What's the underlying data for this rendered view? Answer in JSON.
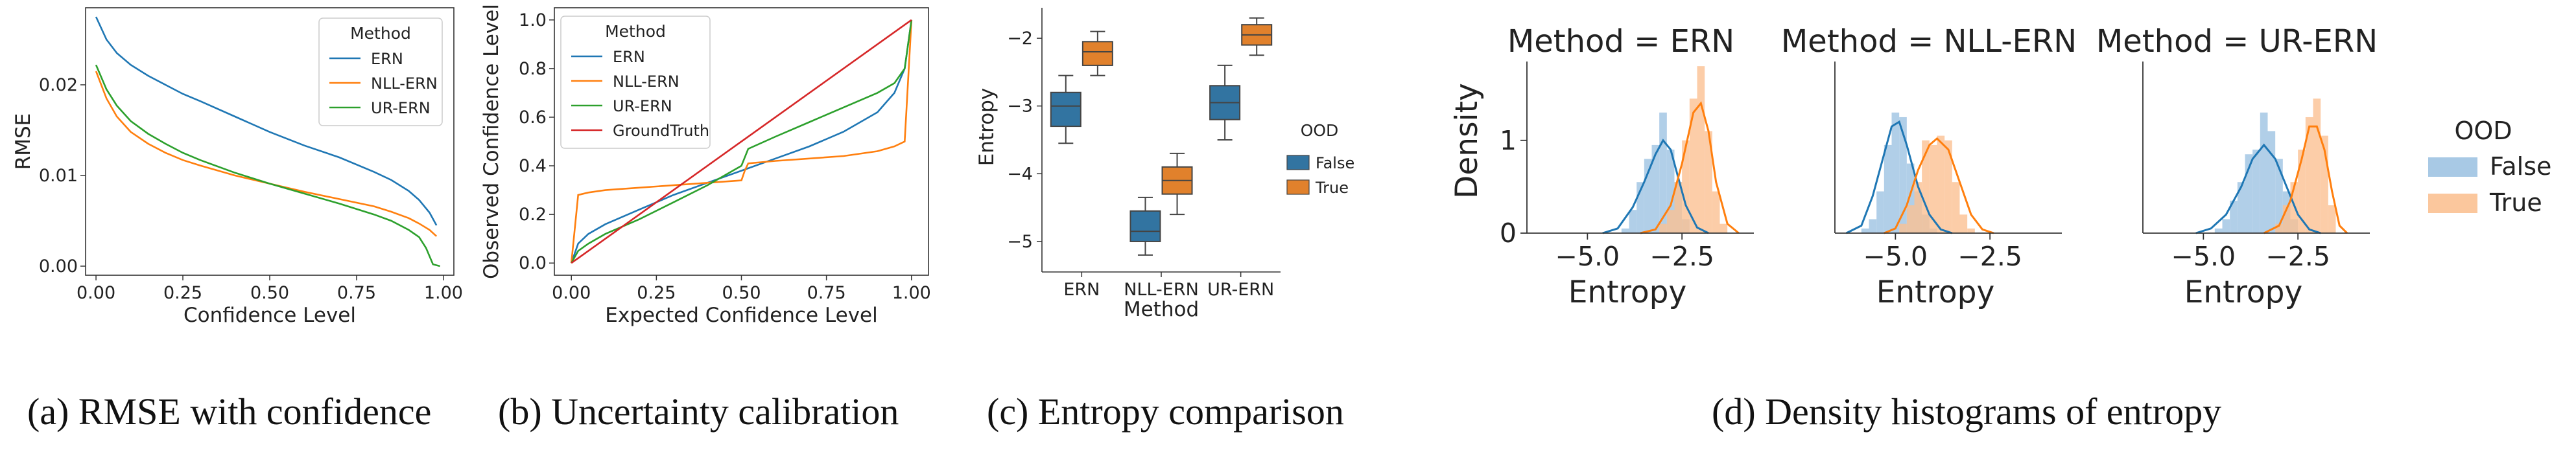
{
  "colors": {
    "ern": "#1f77b4",
    "nll": "#ff7f0e",
    "ur": "#2ca02c",
    "gt": "#d62728",
    "box_false": "#3274a1",
    "box_true": "#e1812c",
    "hist_false": "#9ec3e2",
    "hist_true": "#fbc192"
  },
  "captions": {
    "a": "(a) RMSE with confidence",
    "b": "(b) Uncertainty calibration",
    "c": "(c) Entropy comparison",
    "d": "(d) Density histograms of entropy"
  },
  "chart_data": [
    {
      "id": "a",
      "type": "line",
      "xlabel": "Confidence Level",
      "ylabel": "RMSE",
      "xlim": [
        -0.03,
        1.03
      ],
      "ylim": [
        -0.001,
        0.0285
      ],
      "xticks": [
        "0.00",
        "0.25",
        "0.50",
        "0.75",
        "1.00"
      ],
      "yticks": [
        "0.00",
        "0.01",
        "0.02"
      ],
      "legend_title": "Method",
      "legend_position": "top-right",
      "series": [
        {
          "name": "ERN",
          "color_key": "ern",
          "x": [
            0,
            0.03,
            0.06,
            0.1,
            0.15,
            0.2,
            0.25,
            0.3,
            0.4,
            0.5,
            0.6,
            0.7,
            0.8,
            0.85,
            0.9,
            0.93,
            0.96,
            0.98
          ],
          "y": [
            0.0275,
            0.025,
            0.0235,
            0.0222,
            0.021,
            0.02,
            0.019,
            0.0182,
            0.0165,
            0.0148,
            0.0133,
            0.012,
            0.0104,
            0.0095,
            0.0083,
            0.0073,
            0.0059,
            0.0045
          ]
        },
        {
          "name": "NLL-ERN",
          "color_key": "nll",
          "x": [
            0,
            0.03,
            0.06,
            0.1,
            0.15,
            0.2,
            0.25,
            0.3,
            0.4,
            0.5,
            0.6,
            0.7,
            0.8,
            0.85,
            0.9,
            0.93,
            0.96,
            0.98
          ],
          "y": [
            0.0215,
            0.0185,
            0.0165,
            0.0148,
            0.0135,
            0.0125,
            0.0117,
            0.0111,
            0.01,
            0.0091,
            0.0082,
            0.0074,
            0.0066,
            0.006,
            0.0053,
            0.0047,
            0.004,
            0.0033
          ]
        },
        {
          "name": "UR-ERN",
          "color_key": "ur",
          "x": [
            0,
            0.03,
            0.06,
            0.1,
            0.15,
            0.2,
            0.25,
            0.3,
            0.4,
            0.5,
            0.6,
            0.7,
            0.8,
            0.85,
            0.9,
            0.93,
            0.95,
            0.97,
            0.99
          ],
          "y": [
            0.0222,
            0.0195,
            0.0177,
            0.016,
            0.0146,
            0.0135,
            0.0125,
            0.0117,
            0.0103,
            0.0091,
            0.008,
            0.0069,
            0.0057,
            0.005,
            0.004,
            0.0032,
            0.002,
            0.0002,
            0.0
          ]
        }
      ]
    },
    {
      "id": "b",
      "type": "line",
      "xlabel": "Expected Confidence Level",
      "ylabel": "Observed Confidence Level",
      "xlim": [
        -0.05,
        1.05
      ],
      "ylim": [
        -0.05,
        1.05
      ],
      "xticks": [
        "0.00",
        "0.25",
        "0.50",
        "0.75",
        "1.00"
      ],
      "yticks": [
        "0.0",
        "0.2",
        "0.4",
        "0.6",
        "0.8",
        "1.0"
      ],
      "legend_title": "Method",
      "legend_position": "top-left",
      "series": [
        {
          "name": "ERN",
          "color_key": "ern",
          "x": [
            0,
            0.02,
            0.05,
            0.1,
            0.2,
            0.3,
            0.4,
            0.5,
            0.6,
            0.7,
            0.8,
            0.9,
            0.95,
            0.98,
            1.0
          ],
          "y": [
            0,
            0.08,
            0.12,
            0.16,
            0.22,
            0.28,
            0.33,
            0.38,
            0.43,
            0.48,
            0.54,
            0.62,
            0.7,
            0.8,
            1.0
          ]
        },
        {
          "name": "NLL-ERN",
          "color_key": "nll",
          "x": [
            0,
            0.02,
            0.05,
            0.1,
            0.2,
            0.3,
            0.4,
            0.5,
            0.51,
            0.52,
            0.6,
            0.7,
            0.8,
            0.9,
            0.95,
            0.98,
            1.0
          ],
          "y": [
            0,
            0.28,
            0.29,
            0.3,
            0.31,
            0.32,
            0.33,
            0.34,
            0.38,
            0.41,
            0.42,
            0.43,
            0.44,
            0.46,
            0.48,
            0.5,
            1.0
          ]
        },
        {
          "name": "UR-ERN",
          "color_key": "ur",
          "x": [
            0,
            0.02,
            0.05,
            0.1,
            0.2,
            0.3,
            0.4,
            0.5,
            0.52,
            0.6,
            0.7,
            0.8,
            0.9,
            0.95,
            0.98,
            1.0
          ],
          "y": [
            0,
            0.05,
            0.08,
            0.12,
            0.18,
            0.25,
            0.32,
            0.4,
            0.47,
            0.52,
            0.58,
            0.64,
            0.7,
            0.74,
            0.8,
            1.0
          ]
        },
        {
          "name": "GroundTruth",
          "color_key": "gt",
          "x": [
            0,
            1
          ],
          "y": [
            0,
            1
          ]
        }
      ]
    },
    {
      "id": "c",
      "type": "box",
      "xlabel": "Method",
      "ylabel": "Entropy",
      "ylim": [
        -5.45,
        -1.55
      ],
      "yticks": [
        "−5",
        "−4",
        "−3",
        "−2"
      ],
      "categories": [
        "ERN",
        "NLL-ERN",
        "UR-ERN"
      ],
      "legend_title": "OOD",
      "legend_position": "center-right",
      "series": [
        {
          "name": "False",
          "color_key": "box_false",
          "boxes": [
            {
              "min": -3.55,
              "q1": -3.3,
              "median": -3.0,
              "q3": -2.8,
              "max": -2.55
            },
            {
              "min": -5.2,
              "q1": -5.0,
              "median": -4.85,
              "q3": -4.55,
              "max": -4.35
            },
            {
              "min": -3.5,
              "q1": -3.2,
              "median": -2.95,
              "q3": -2.7,
              "max": -2.4
            }
          ]
        },
        {
          "name": "True",
          "color_key": "box_true",
          "boxes": [
            {
              "min": -2.55,
              "q1": -2.4,
              "median": -2.2,
              "q3": -2.05,
              "max": -1.9
            },
            {
              "min": -4.6,
              "q1": -4.3,
              "median": -4.1,
              "q3": -3.9,
              "max": -3.7
            },
            {
              "min": -2.25,
              "q1": -2.1,
              "median": -1.95,
              "q3": -1.8,
              "max": -1.7
            }
          ]
        }
      ]
    },
    {
      "id": "d",
      "type": "histogram",
      "xlabel": "Entropy",
      "ylabel": "Density",
      "xlim": [
        -6.6,
        -0.6
      ],
      "ylim": [
        0,
        1.85
      ],
      "xticks": [
        "−5.0",
        "−2.5"
      ],
      "xtick_values": [
        -5.0,
        -2.5
      ],
      "yticks": [
        "0",
        "1"
      ],
      "legend_title": "OOD",
      "legend_position": "outside-right",
      "legend_items": [
        "False",
        "True"
      ],
      "facets": [
        {
          "title": "Method = ERN",
          "hist_false": {
            "x": [
              -4.0,
              -3.8,
              -3.6,
              -3.4,
              -3.2,
              -3.0,
              -2.8,
              -2.6,
              -2.4
            ],
            "y": [
              0.05,
              0.25,
              0.55,
              0.8,
              0.95,
              1.3,
              0.9,
              0.55,
              0.15
            ]
          },
          "hist_true": {
            "x": [
              -3.0,
              -2.8,
              -2.6,
              -2.4,
              -2.2,
              -2.0,
              -1.8,
              -1.6,
              -1.4
            ],
            "y": [
              0.1,
              0.25,
              0.55,
              1.0,
              1.45,
              1.8,
              1.1,
              0.45,
              0.1
            ]
          },
          "kde_false": {
            "x": [
              -4.6,
              -4.2,
              -3.8,
              -3.5,
              -3.2,
              -3.0,
              -2.8,
              -2.6,
              -2.4,
              -2.1,
              -1.8
            ],
            "y": [
              0,
              0.05,
              0.28,
              0.55,
              0.85,
              1.0,
              0.9,
              0.6,
              0.3,
              0.06,
              0
            ]
          },
          "kde_true": {
            "x": [
              -3.6,
              -3.2,
              -2.8,
              -2.5,
              -2.2,
              -2.0,
              -1.8,
              -1.6,
              -1.3,
              -1.0
            ],
            "y": [
              0,
              0.04,
              0.3,
              0.75,
              1.3,
              1.4,
              1.1,
              0.55,
              0.1,
              0
            ]
          }
        },
        {
          "title": "Method = NLL-ERN",
          "hist_false": {
            "x": [
              -5.8,
              -5.6,
              -5.4,
              -5.2,
              -5.0,
              -4.8,
              -4.6,
              -4.4,
              -4.2,
              -4.0
            ],
            "y": [
              0.05,
              0.15,
              0.45,
              0.95,
              1.3,
              1.25,
              0.75,
              0.45,
              0.2,
              0.05
            ]
          },
          "hist_true": {
            "x": [
              -4.8,
              -4.6,
              -4.4,
              -4.2,
              -4.0,
              -3.8,
              -3.6,
              -3.4,
              -3.2,
              -3.0
            ],
            "y": [
              0.1,
              0.3,
              0.55,
              1.0,
              0.95,
              1.05,
              1.0,
              0.55,
              0.2,
              0.05
            ]
          },
          "kde_false": {
            "x": [
              -6.3,
              -5.9,
              -5.6,
              -5.3,
              -5.1,
              -4.9,
              -4.7,
              -4.4,
              -4.1,
              -3.8,
              -3.5
            ],
            "y": [
              0,
              0.08,
              0.4,
              0.85,
              1.15,
              1.2,
              0.95,
              0.5,
              0.2,
              0.04,
              0
            ]
          },
          "kde_true": {
            "x": [
              -5.3,
              -5.0,
              -4.7,
              -4.4,
              -4.1,
              -3.9,
              -3.6,
              -3.3,
              -3.0,
              -2.7,
              -2.4
            ],
            "y": [
              0,
              0.05,
              0.3,
              0.68,
              0.95,
              1.02,
              0.9,
              0.55,
              0.2,
              0.04,
              0
            ]
          }
        },
        {
          "title": "Method = UR-ERN",
          "hist_false": {
            "x": [
              -4.6,
              -4.4,
              -4.2,
              -4.0,
              -3.8,
              -3.6,
              -3.4,
              -3.2,
              -3.0,
              -2.8,
              -2.6
            ],
            "y": [
              0.05,
              0.15,
              0.35,
              0.55,
              0.85,
              0.9,
              1.3,
              1.1,
              0.8,
              0.45,
              0.15
            ]
          },
          "hist_true": {
            "x": [
              -3.0,
              -2.8,
              -2.6,
              -2.4,
              -2.2,
              -2.0,
              -1.8,
              -1.6
            ],
            "y": [
              0.1,
              0.3,
              0.55,
              0.9,
              1.25,
              1.45,
              1.05,
              0.3
            ]
          },
          "kde_false": {
            "x": [
              -5.2,
              -4.8,
              -4.4,
              -4.0,
              -3.7,
              -3.4,
              -3.1,
              -2.8,
              -2.5,
              -2.2,
              -1.9
            ],
            "y": [
              0,
              0.05,
              0.2,
              0.5,
              0.8,
              0.95,
              0.8,
              0.5,
              0.2,
              0.04,
              0
            ]
          },
          "kde_true": {
            "x": [
              -3.4,
              -3.0,
              -2.7,
              -2.4,
              -2.2,
              -2.0,
              -1.8,
              -1.6,
              -1.4,
              -1.2
            ],
            "y": [
              0,
              0.08,
              0.35,
              0.8,
              1.15,
              1.15,
              0.9,
              0.45,
              0.08,
              0
            ]
          }
        }
      ]
    }
  ]
}
